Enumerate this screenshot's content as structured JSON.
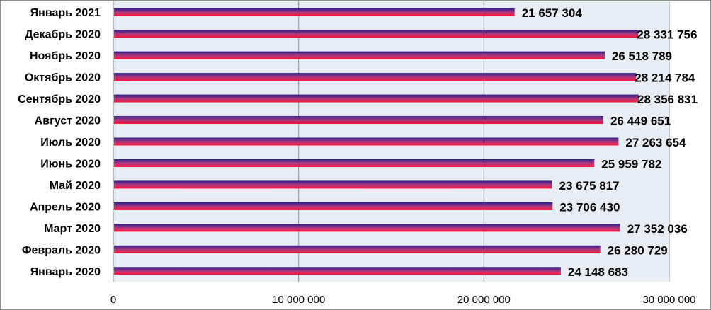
{
  "chart_data": {
    "type": "bar",
    "orientation": "horizontal",
    "categories": [
      "Январь 2021",
      "Декабрь 2020",
      "Ноябрь 2020",
      "Октябрь 2020",
      "Сентябрь 2020",
      "Август 2020",
      "Июль 2020",
      "Июнь 2020",
      "Май 2020",
      "Апрель 2020",
      "Март 2020",
      "Февраль 2020",
      "Январь 2020"
    ],
    "values": [
      21657304,
      28331756,
      26518789,
      28214784,
      28356831,
      26449651,
      27263654,
      25959782,
      23675817,
      23706430,
      27352036,
      26280729,
      24148683
    ],
    "value_labels": [
      "21 657 304",
      "28 331 756",
      "26 518 789",
      "28 214 784",
      "28 356 831",
      "26 449 651",
      "27 263 654",
      "25 959 782",
      "23 675 817",
      "23 706 430",
      "27 352 036",
      "26 280 729",
      "24 148 683"
    ],
    "xlim": [
      0,
      30000000
    ],
    "xticks": [
      0,
      10000000,
      20000000,
      30000000
    ],
    "xtick_labels": [
      "0",
      "10 000 000",
      "20 000 000",
      "30 000 000"
    ],
    "title": "",
    "xlabel": "",
    "ylabel": "",
    "grid": "vertical",
    "legend": "none",
    "colors": {
      "plot_background": "#e9ecf5",
      "gridline": "#8c8c8c",
      "bar_top": "#2b1f8a",
      "bar_mid": "#b0387c",
      "bar_bottom": "#ff1438"
    }
  }
}
